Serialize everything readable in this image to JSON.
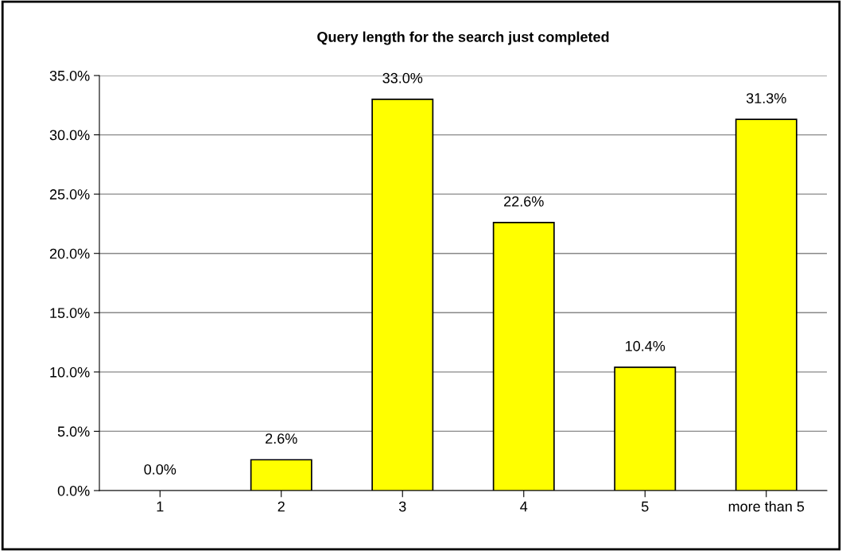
{
  "chart_data": {
    "type": "bar",
    "title": "Query length for the search just completed",
    "categories": [
      "1",
      "2",
      "3",
      "4",
      "5",
      "more than 5"
    ],
    "values": [
      0.0,
      2.6,
      33.0,
      22.6,
      10.4,
      31.3
    ],
    "value_labels": [
      "0.0%",
      "2.6%",
      "33.0%",
      "22.6%",
      "10.4%",
      "31.3%"
    ],
    "color": "#ffff00",
    "ylim": [
      0,
      35
    ],
    "yticks": [
      {
        "value": 0,
        "label": "0.0%"
      },
      {
        "value": 5,
        "label": "5.0%"
      },
      {
        "value": 10,
        "label": "10.0%"
      },
      {
        "value": 15,
        "label": "15.0%"
      },
      {
        "value": 20,
        "label": "20.0%"
      },
      {
        "value": 25,
        "label": "25.0%"
      },
      {
        "value": 30,
        "label": "30.0%"
      },
      {
        "value": 35,
        "label": "35.0%"
      }
    ],
    "grid": "y",
    "legend": false
  }
}
